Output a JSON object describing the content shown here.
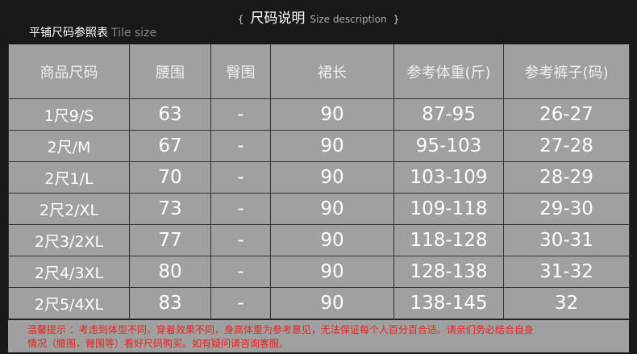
{
  "title": {
    "open": "{",
    "zh": "尺码说明",
    "en": "Size description",
    "close": "}"
  },
  "subtitle": {
    "zh": "平铺尺码参照表",
    "en": "Tile size"
  },
  "table": {
    "headers": [
      "商品尺码",
      "腰围",
      "臀围",
      "裙长",
      "参考体重(斤)",
      "参考裤子(码)"
    ],
    "rows": [
      [
        "1尺9/S",
        "63",
        "-",
        "90",
        "87-95",
        "26-27"
      ],
      [
        "2尺/M",
        "67",
        "-",
        "90",
        "95-103",
        "27-28"
      ],
      [
        "2尺1/L",
        "70",
        "-",
        "90",
        "103-109",
        "28-29"
      ],
      [
        "2尺2/XL",
        "73",
        "-",
        "90",
        "109-118",
        "29-30"
      ],
      [
        "2尺3/2XL",
        "77",
        "-",
        "90",
        "118-128",
        "30-31"
      ],
      [
        "2尺4/3XL",
        "80",
        "-",
        "90",
        "128-138",
        "31-32"
      ],
      [
        "2尺5/4XL",
        "83",
        "-",
        "90",
        "138-145",
        "32"
      ]
    ]
  },
  "note": {
    "line1": "温馨提示 ：考虑到体型不同，穿着效果不同，身高体重为参考意见，无法保证每个人百分百合适。请亲们务必结合自身",
    "line2": "情况（腰围，臀围等）看好尺码购买。如有疑问请咨询客服。"
  }
}
